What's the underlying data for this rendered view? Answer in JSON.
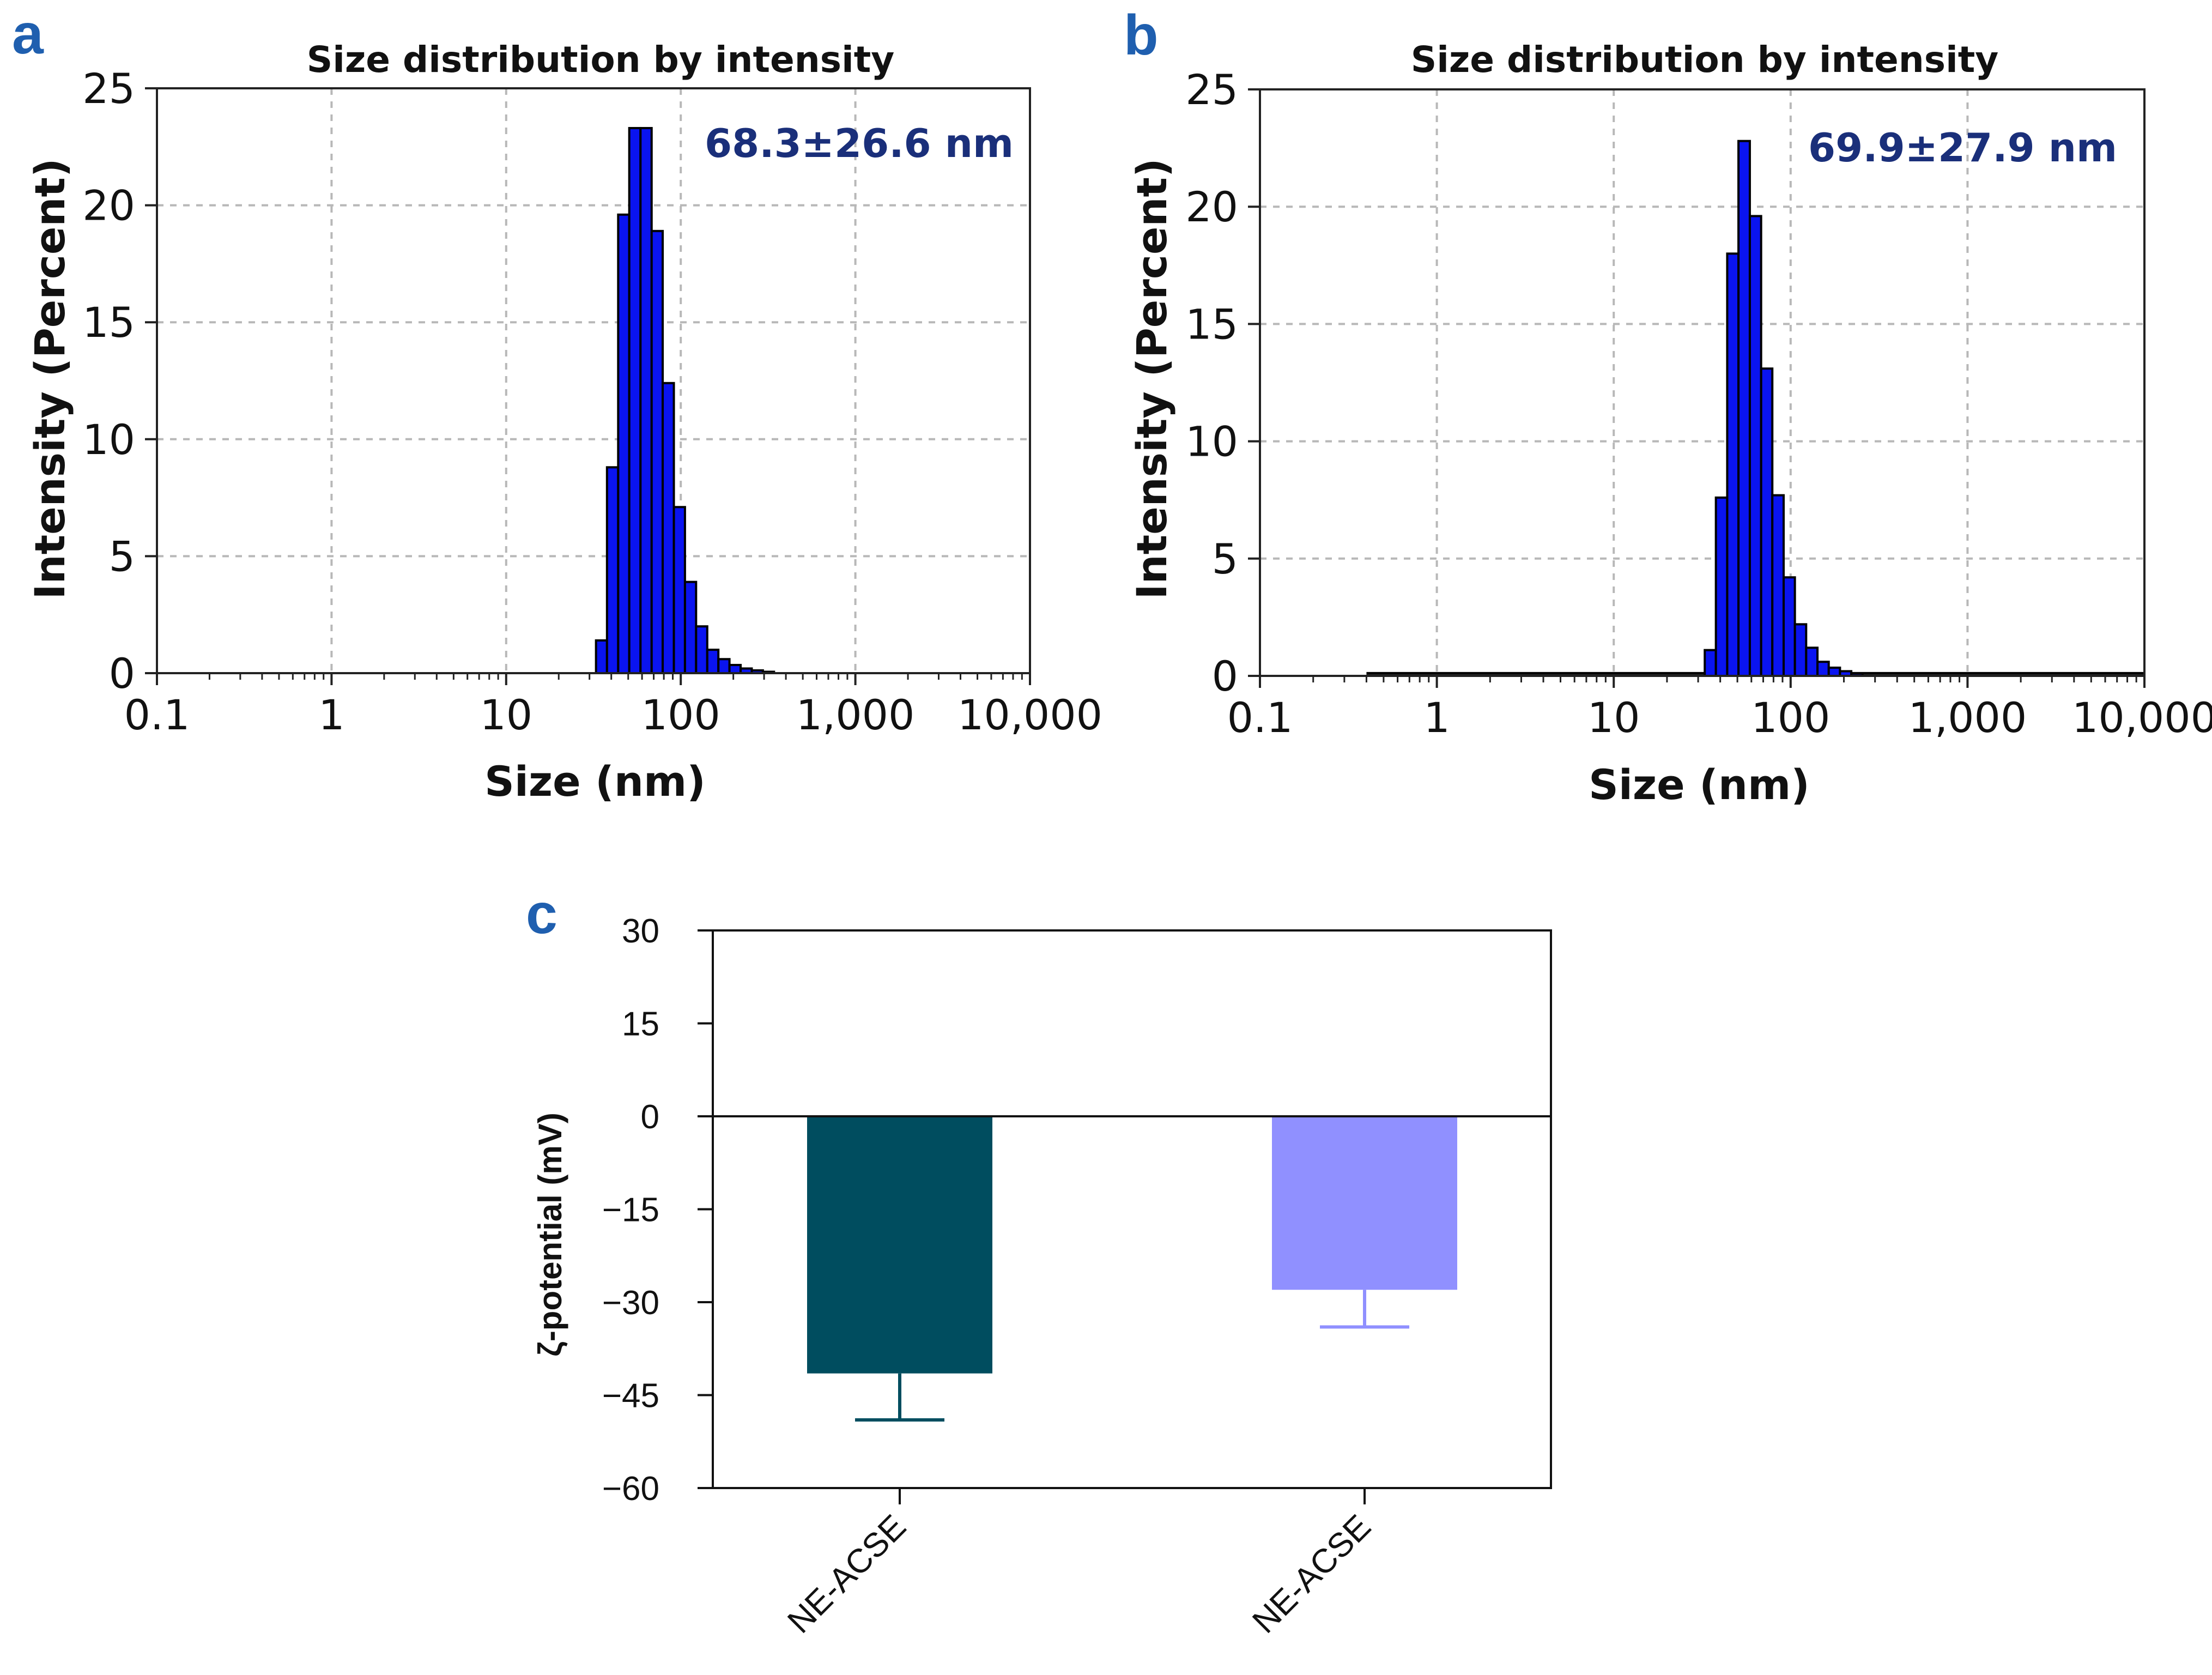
{
  "colors": {
    "panel_letter": "#1F5FAF",
    "annotation": "#1A2F7A",
    "hist_fill": "#0A14F0",
    "bar_dark": "#004D5F",
    "bar_light": "#9090FF",
    "grid": "#B8B8B8"
  },
  "chart_data": [
    {
      "id": "a",
      "panel_letter": "a",
      "type": "bar",
      "title": "Size distribution by intensity",
      "xlabel": "Size (nm)",
      "ylabel": "Intensity (Percent)",
      "xscale": "log",
      "xlim": [
        0.1,
        10000
      ],
      "ylim": [
        0,
        25
      ],
      "xticks": [
        0.1,
        1,
        10,
        100,
        1000,
        10000
      ],
      "xtick_labels": [
        "0.1",
        "1",
        "10",
        "100",
        "1,000",
        "10,000"
      ],
      "yticks": [
        0,
        5,
        10,
        15,
        20,
        25
      ],
      "ytick_labels": [
        "0",
        "5",
        "10",
        "15",
        "20",
        "25"
      ],
      "annotation": "68.3±26.6 nm",
      "bins": [
        {
          "x0": 32.7,
          "x1": 37.8,
          "y": 1.4
        },
        {
          "x0": 37.8,
          "x1": 43.8,
          "y": 8.8
        },
        {
          "x0": 43.8,
          "x1": 50.7,
          "y": 19.6
        },
        {
          "x0": 50.7,
          "x1": 58.8,
          "y": 23.3
        },
        {
          "x0": 58.8,
          "x1": 68.1,
          "y": 23.3
        },
        {
          "x0": 68.1,
          "x1": 78.8,
          "y": 18.9
        },
        {
          "x0": 78.8,
          "x1": 91.3,
          "y": 12.4
        },
        {
          "x0": 91.3,
          "x1": 105.7,
          "y": 7.1
        },
        {
          "x0": 105.7,
          "x1": 122.4,
          "y": 3.9
        },
        {
          "x0": 122.4,
          "x1": 141.8,
          "y": 2.0
        },
        {
          "x0": 141.8,
          "x1": 164.2,
          "y": 1.0
        },
        {
          "x0": 164.2,
          "x1": 190.1,
          "y": 0.6
        },
        {
          "x0": 190.1,
          "x1": 220.2,
          "y": 0.35
        },
        {
          "x0": 220.2,
          "x1": 255.0,
          "y": 0.2
        },
        {
          "x0": 255.0,
          "x1": 295.3,
          "y": 0.12
        },
        {
          "x0": 295.3,
          "x1": 342.0,
          "y": 0.06
        }
      ]
    },
    {
      "id": "b",
      "panel_letter": "b",
      "type": "bar",
      "title": "Size distribution by intensity",
      "xlabel": "Size (nm)",
      "ylabel": "Intensity (Percent)",
      "xscale": "log",
      "xlim": [
        0.1,
        10000
      ],
      "ylim": [
        0,
        25
      ],
      "xticks": [
        0.1,
        1,
        10,
        100,
        1000,
        10000
      ],
      "xtick_labels": [
        "0.1",
        "1",
        "10",
        "100",
        "1,000",
        "10,000"
      ],
      "yticks": [
        0,
        5,
        10,
        15,
        20,
        25
      ],
      "ytick_labels": [
        "0",
        "5",
        "10",
        "15",
        "20",
        "25"
      ],
      "annotation": "69.9±27.9 nm",
      "baseline": {
        "x0": 0.4,
        "x1": 10000,
        "y": 0.05
      },
      "bins": [
        {
          "x0": 32.7,
          "x1": 37.8,
          "y": 1.1
        },
        {
          "x0": 37.8,
          "x1": 43.8,
          "y": 7.6
        },
        {
          "x0": 43.8,
          "x1": 50.7,
          "y": 18.0
        },
        {
          "x0": 50.7,
          "x1": 58.8,
          "y": 22.8
        },
        {
          "x0": 58.8,
          "x1": 68.1,
          "y": 19.6
        },
        {
          "x0": 68.1,
          "x1": 78.8,
          "y": 13.1
        },
        {
          "x0": 78.8,
          "x1": 91.3,
          "y": 7.7
        },
        {
          "x0": 91.3,
          "x1": 105.7,
          "y": 4.2
        },
        {
          "x0": 105.7,
          "x1": 122.4,
          "y": 2.2
        },
        {
          "x0": 122.4,
          "x1": 141.8,
          "y": 1.2
        },
        {
          "x0": 141.8,
          "x1": 164.2,
          "y": 0.6
        },
        {
          "x0": 164.2,
          "x1": 190.1,
          "y": 0.35
        },
        {
          "x0": 190.1,
          "x1": 220.2,
          "y": 0.2
        },
        {
          "x0": 220.2,
          "x1": 255.0,
          "y": 0.1
        }
      ]
    },
    {
      "id": "c",
      "panel_letter": "c",
      "type": "bar",
      "title": "",
      "xlabel": "",
      "ylabel": "ζ-potential (mV)",
      "ylim": [
        -60,
        30
      ],
      "yticks": [
        30,
        15,
        0,
        -15,
        -30,
        -45,
        -60
      ],
      "ytick_labels": [
        "30",
        "15",
        "0",
        "−15",
        "−30",
        "−45",
        "−60"
      ],
      "categories": [
        "NE-ACSE",
        "NE-ACSE"
      ],
      "values": [
        -41.5,
        -28.0
      ],
      "errors": [
        7.5,
        6.0
      ]
    }
  ]
}
